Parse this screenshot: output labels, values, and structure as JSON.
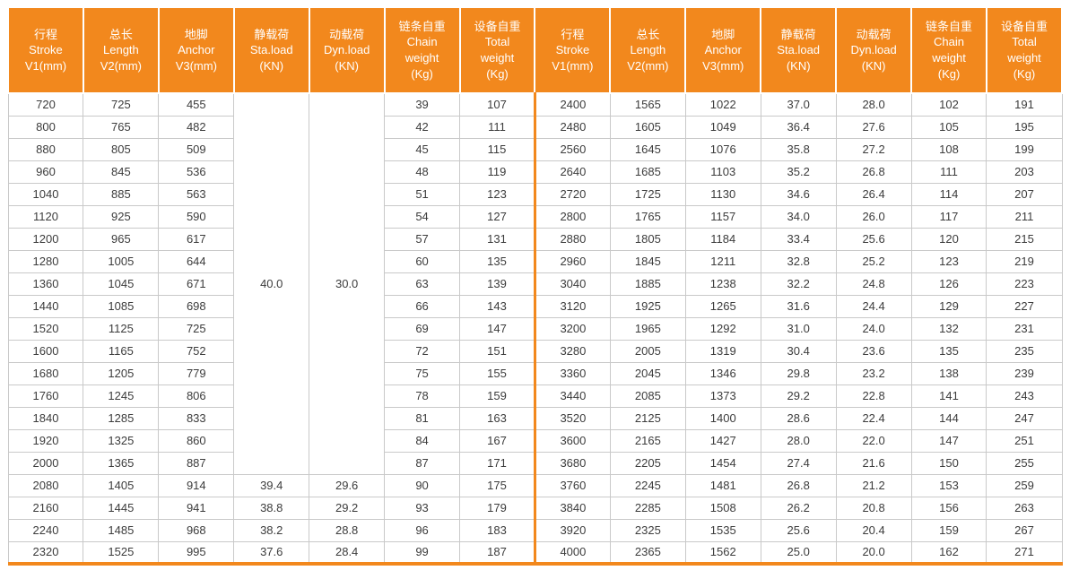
{
  "colors": {
    "accent": "#F2881D",
    "header_text": "#FFFFFF",
    "grid": "#C9C9C9",
    "body_text": "#3C3C3C"
  },
  "table": {
    "headers": [
      {
        "key": "stroke",
        "lines": [
          "行程",
          "Stroke",
          "V1(mm)"
        ]
      },
      {
        "key": "length",
        "lines": [
          "总长",
          "Length",
          "V2(mm)"
        ]
      },
      {
        "key": "anchor",
        "lines": [
          "地脚",
          "Anchor",
          "V3(mm)"
        ]
      },
      {
        "key": "sta-load",
        "lines": [
          "静载荷",
          "Sta.load",
          "(KN)"
        ]
      },
      {
        "key": "dyn-load",
        "lines": [
          "动载荷",
          "Dyn.load",
          "(KN)"
        ]
      },
      {
        "key": "chain-weight",
        "lines": [
          "链条自重",
          "Chain",
          "weight",
          "(Kg)"
        ]
      },
      {
        "key": "total-weight",
        "lines": [
          "设备自重",
          "Total",
          "weight",
          "(Kg)"
        ]
      }
    ],
    "left_merged": {
      "row_span": 17,
      "sta_load": "40.0",
      "dyn_load": "30.0"
    },
    "left_rows": [
      [
        "720",
        "725",
        "455",
        null,
        null,
        "39",
        "107"
      ],
      [
        "800",
        "765",
        "482",
        null,
        null,
        "42",
        "111"
      ],
      [
        "880",
        "805",
        "509",
        null,
        null,
        "45",
        "115"
      ],
      [
        "960",
        "845",
        "536",
        null,
        null,
        "48",
        "119"
      ],
      [
        "1040",
        "885",
        "563",
        null,
        null,
        "51",
        "123"
      ],
      [
        "1120",
        "925",
        "590",
        null,
        null,
        "54",
        "127"
      ],
      [
        "1200",
        "965",
        "617",
        null,
        null,
        "57",
        "131"
      ],
      [
        "1280",
        "1005",
        "644",
        null,
        null,
        "60",
        "135"
      ],
      [
        "1360",
        "1045",
        "671",
        null,
        null,
        "63",
        "139"
      ],
      [
        "1440",
        "1085",
        "698",
        null,
        null,
        "66",
        "143"
      ],
      [
        "1520",
        "1125",
        "725",
        null,
        null,
        "69",
        "147"
      ],
      [
        "1600",
        "1165",
        "752",
        null,
        null,
        "72",
        "151"
      ],
      [
        "1680",
        "1205",
        "779",
        null,
        null,
        "75",
        "155"
      ],
      [
        "1760",
        "1245",
        "806",
        null,
        null,
        "78",
        "159"
      ],
      [
        "1840",
        "1285",
        "833",
        null,
        null,
        "81",
        "163"
      ],
      [
        "1920",
        "1325",
        "860",
        null,
        null,
        "84",
        "167"
      ],
      [
        "2000",
        "1365",
        "887",
        null,
        null,
        "87",
        "171"
      ],
      [
        "2080",
        "1405",
        "914",
        "39.4",
        "29.6",
        "90",
        "175"
      ],
      [
        "2160",
        "1445",
        "941",
        "38.8",
        "29.2",
        "93",
        "179"
      ],
      [
        "2240",
        "1485",
        "968",
        "38.2",
        "28.8",
        "96",
        "183"
      ],
      [
        "2320",
        "1525",
        "995",
        "37.6",
        "28.4",
        "99",
        "187"
      ]
    ],
    "right_rows": [
      [
        "2400",
        "1565",
        "1022",
        "37.0",
        "28.0",
        "102",
        "191"
      ],
      [
        "2480",
        "1605",
        "1049",
        "36.4",
        "27.6",
        "105",
        "195"
      ],
      [
        "2560",
        "1645",
        "1076",
        "35.8",
        "27.2",
        "108",
        "199"
      ],
      [
        "2640",
        "1685",
        "1103",
        "35.2",
        "26.8",
        "111",
        "203"
      ],
      [
        "2720",
        "1725",
        "1130",
        "34.6",
        "26.4",
        "114",
        "207"
      ],
      [
        "2800",
        "1765",
        "1157",
        "34.0",
        "26.0",
        "117",
        "211"
      ],
      [
        "2880",
        "1805",
        "1184",
        "33.4",
        "25.6",
        "120",
        "215"
      ],
      [
        "2960",
        "1845",
        "1211",
        "32.8",
        "25.2",
        "123",
        "219"
      ],
      [
        "3040",
        "1885",
        "1238",
        "32.2",
        "24.8",
        "126",
        "223"
      ],
      [
        "3120",
        "1925",
        "1265",
        "31.6",
        "24.4",
        "129",
        "227"
      ],
      [
        "3200",
        "1965",
        "1292",
        "31.0",
        "24.0",
        "132",
        "231"
      ],
      [
        "3280",
        "2005",
        "1319",
        "30.4",
        "23.6",
        "135",
        "235"
      ],
      [
        "3360",
        "2045",
        "1346",
        "29.8",
        "23.2",
        "138",
        "239"
      ],
      [
        "3440",
        "2085",
        "1373",
        "29.2",
        "22.8",
        "141",
        "243"
      ],
      [
        "3520",
        "2125",
        "1400",
        "28.6",
        "22.4",
        "144",
        "247"
      ],
      [
        "3600",
        "2165",
        "1427",
        "28.0",
        "22.0",
        "147",
        "251"
      ],
      [
        "3680",
        "2205",
        "1454",
        "27.4",
        "21.6",
        "150",
        "255"
      ],
      [
        "3760",
        "2245",
        "1481",
        "26.8",
        "21.2",
        "153",
        "259"
      ],
      [
        "3840",
        "2285",
        "1508",
        "26.2",
        "20.8",
        "156",
        "263"
      ],
      [
        "3920",
        "2325",
        "1535",
        "25.6",
        "20.4",
        "159",
        "267"
      ],
      [
        "4000",
        "2365",
        "1562",
        "25.0",
        "20.0",
        "162",
        "271"
      ]
    ]
  }
}
